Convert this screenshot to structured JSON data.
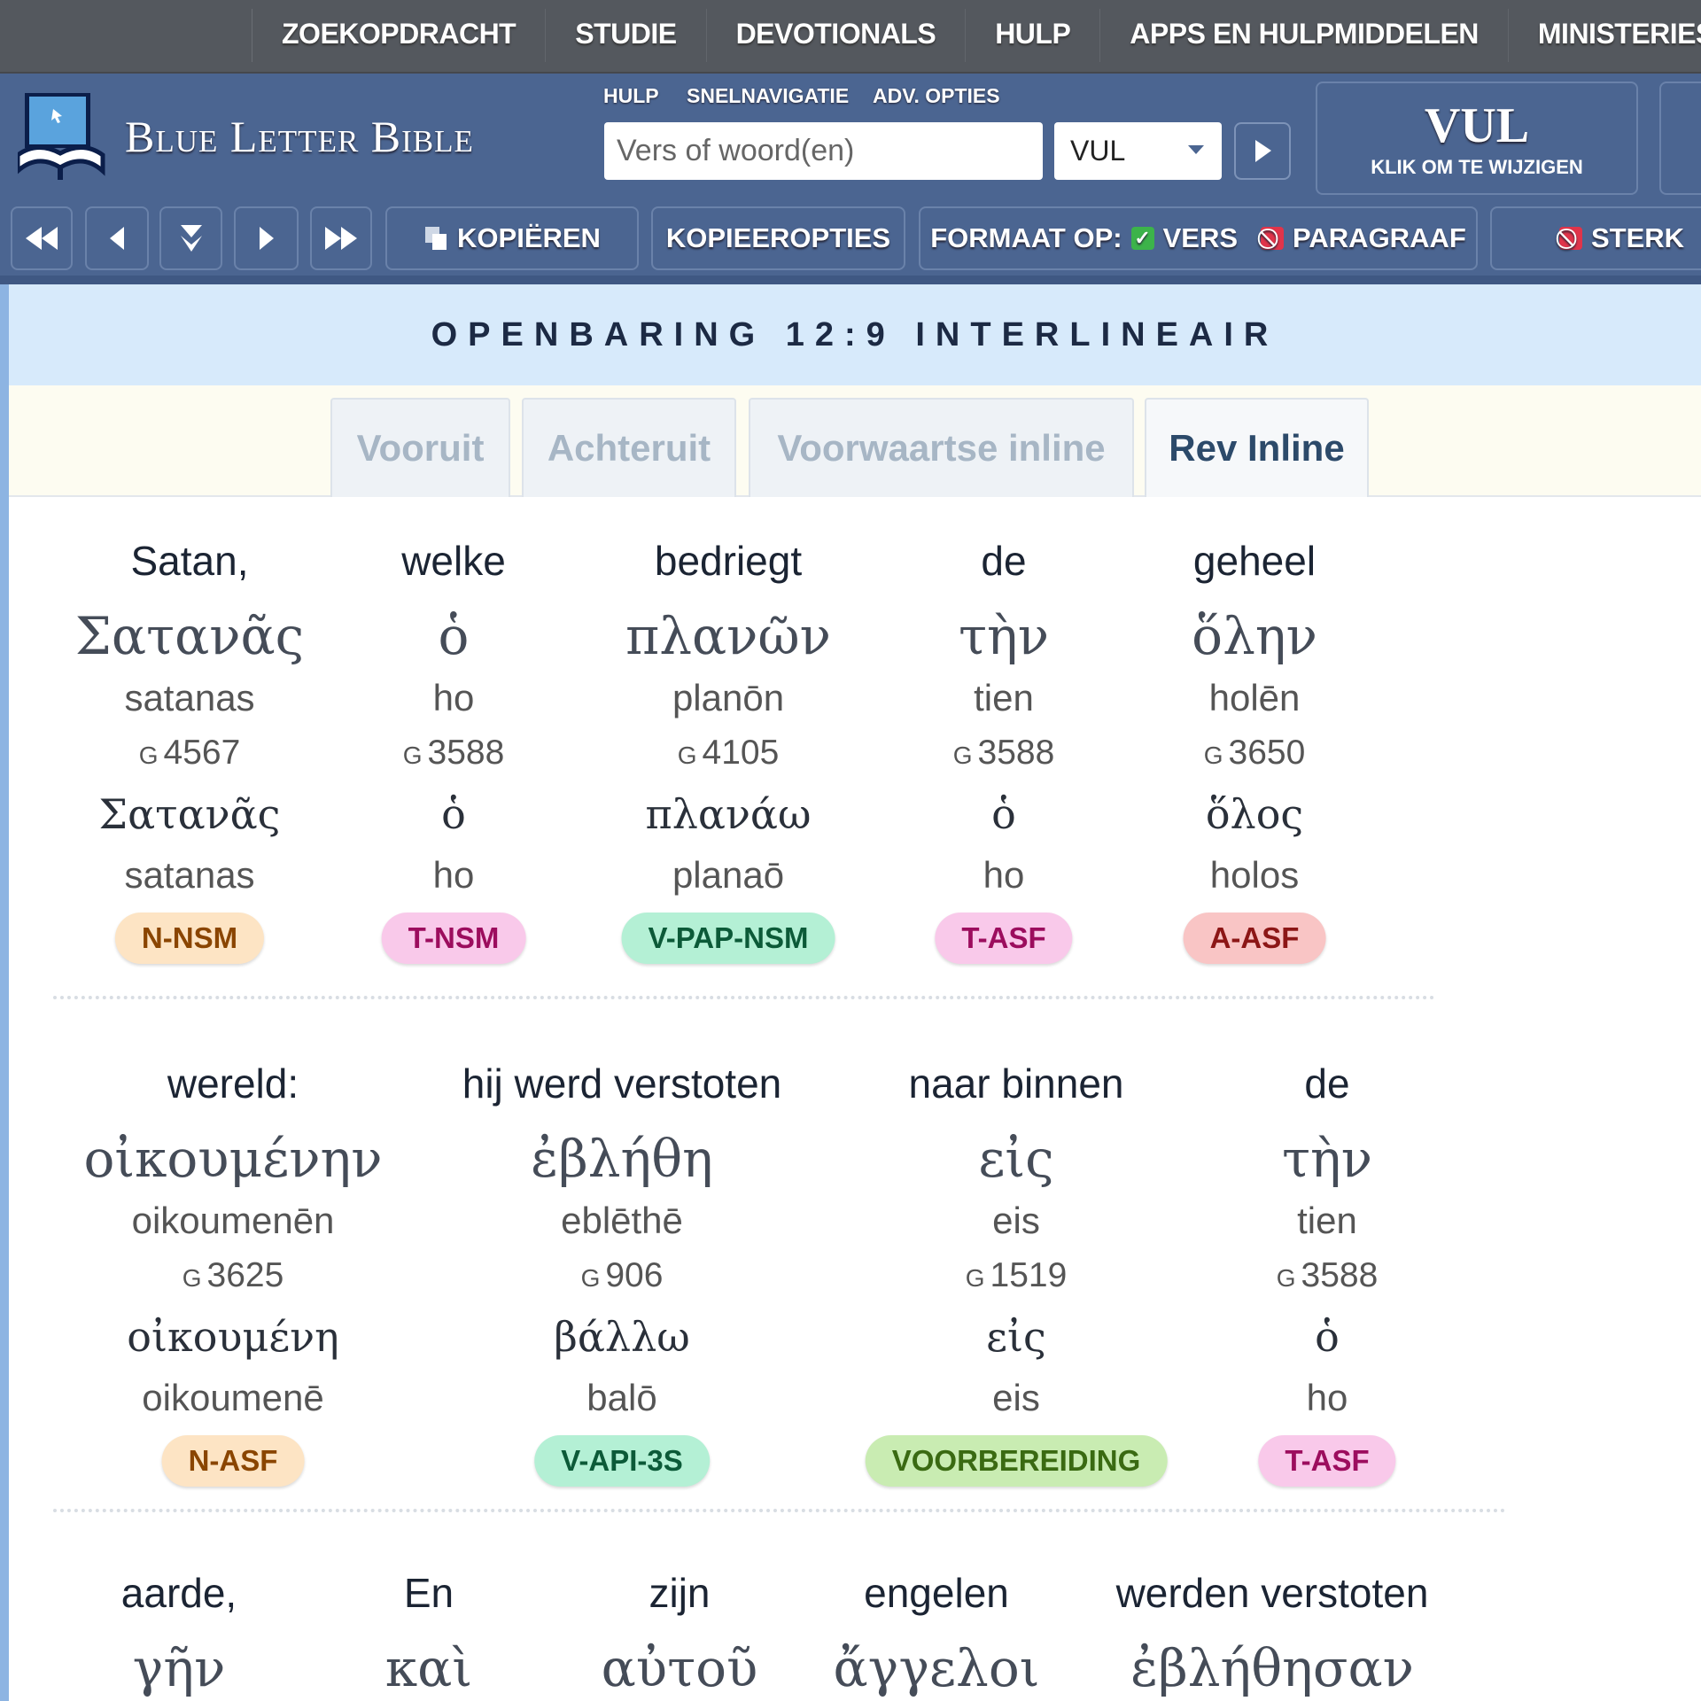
{
  "topnav": [
    "ZOEKOPDRACHT",
    "STUDIE",
    "DEVOTIONALS",
    "HULP",
    "APPS EN HULPMIDDELEN",
    "MINISTERIES"
  ],
  "header": {
    "title": "Blue Letter Bible",
    "links": [
      "HULP",
      "SNELNAVIGATIE",
      "ADV. OPTIES"
    ],
    "search_placeholder": "Vers of woord(en)",
    "version": "VUL",
    "version_box": "VUL",
    "version_hint": "KLIK OM TE WIJZIGEN"
  },
  "toolbar": {
    "copy": "KOPIËREN",
    "copy_options": "KOPIEEROPTIES",
    "format_label": "FORMAAT OP:",
    "verse": "VERS",
    "paragraph": "PARAGRAAF",
    "strongs": "STERK",
    "check_color": "#3cb34a",
    "off_color": "#e0344a"
  },
  "page_title": "OPENBARING 12:9 INTERLINEAIR",
  "tabs": [
    {
      "label": "Vooruit",
      "active": false
    },
    {
      "label": "Achteruit",
      "active": false
    },
    {
      "label": "Voorwaartse inline",
      "active": false
    },
    {
      "label": "Rev Inline",
      "active": true
    }
  ],
  "rows": [
    [
      {
        "en": "Satan,",
        "gr": "Σατανᾶς",
        "tr": "satanas",
        "strong": "4567",
        "lemma": "Σατανᾶς",
        "ltr": "satanas",
        "parse": "N-NSM",
        "kind": "noun"
      },
      {
        "en": "welke",
        "gr": "ὁ",
        "tr": "ho",
        "strong": "3588",
        "lemma": "ὁ",
        "ltr": "ho",
        "parse": "T-NSM",
        "kind": "art"
      },
      {
        "en": "bedriegt",
        "gr": "πλανῶν",
        "tr": "planōn",
        "strong": "4105",
        "lemma": "πλανάω",
        "ltr": "planaō",
        "parse": "V-PAP-NSM",
        "kind": "verb"
      },
      {
        "en": "de",
        "gr": "τὴν",
        "tr": "tien",
        "strong": "3588",
        "lemma": "ὁ",
        "ltr": "ho",
        "parse": "T-ASF",
        "kind": "art"
      },
      {
        "en": "geheel",
        "gr": "ὅλην",
        "tr": "holēn",
        "strong": "3650",
        "lemma": "ὅλος",
        "ltr": "holos",
        "parse": "A-ASF",
        "kind": "adj"
      }
    ],
    [
      {
        "en": "wereld:",
        "gr": "οἰκουμένην",
        "tr": "oikoumenēn",
        "strong": "3625",
        "lemma": "οἰκουμένη",
        "ltr": "oikoumenē",
        "parse": "N-ASF",
        "kind": "noun"
      },
      {
        "en": "hij werd verstoten",
        "gr": "ἐβλήθη",
        "tr": "eblēthē",
        "strong": "906",
        "lemma": "βάλλω",
        "ltr": "balō",
        "parse": "V-API-3S",
        "kind": "verb"
      },
      {
        "en": "naar binnen",
        "gr": "εἰς",
        "tr": "eis",
        "strong": "1519",
        "lemma": "εἰς",
        "ltr": "eis",
        "parse": "VOORBEREIDING",
        "kind": "prep"
      },
      {
        "en": "de",
        "gr": "τὴν",
        "tr": "tien",
        "strong": "3588",
        "lemma": "ὁ",
        "ltr": "ho",
        "parse": "T-ASF",
        "kind": "art"
      }
    ],
    [
      {
        "en": "aarde,",
        "gr": "γῆν"
      },
      {
        "en": "En",
        "gr": "καὶ"
      },
      {
        "en": "zijn",
        "gr": "αὐτοῦ"
      },
      {
        "en": "engelen",
        "gr": "ἄγγελοι"
      },
      {
        "en": "werden verstoten",
        "gr": "ἐβλήθησαν"
      }
    ]
  ],
  "strong_prefix": "G",
  "badge_colors": {
    "noun": [
      "#fde4c4",
      "#8a4500"
    ],
    "art": [
      "#f9c9ea",
      "#9c0d5e"
    ],
    "verb": [
      "#b4f0d5",
      "#0c5a38"
    ],
    "adj": [
      "#f9c5c5",
      "#8c1616"
    ],
    "prep": [
      "#c9ecb2",
      "#3a6a12"
    ]
  }
}
